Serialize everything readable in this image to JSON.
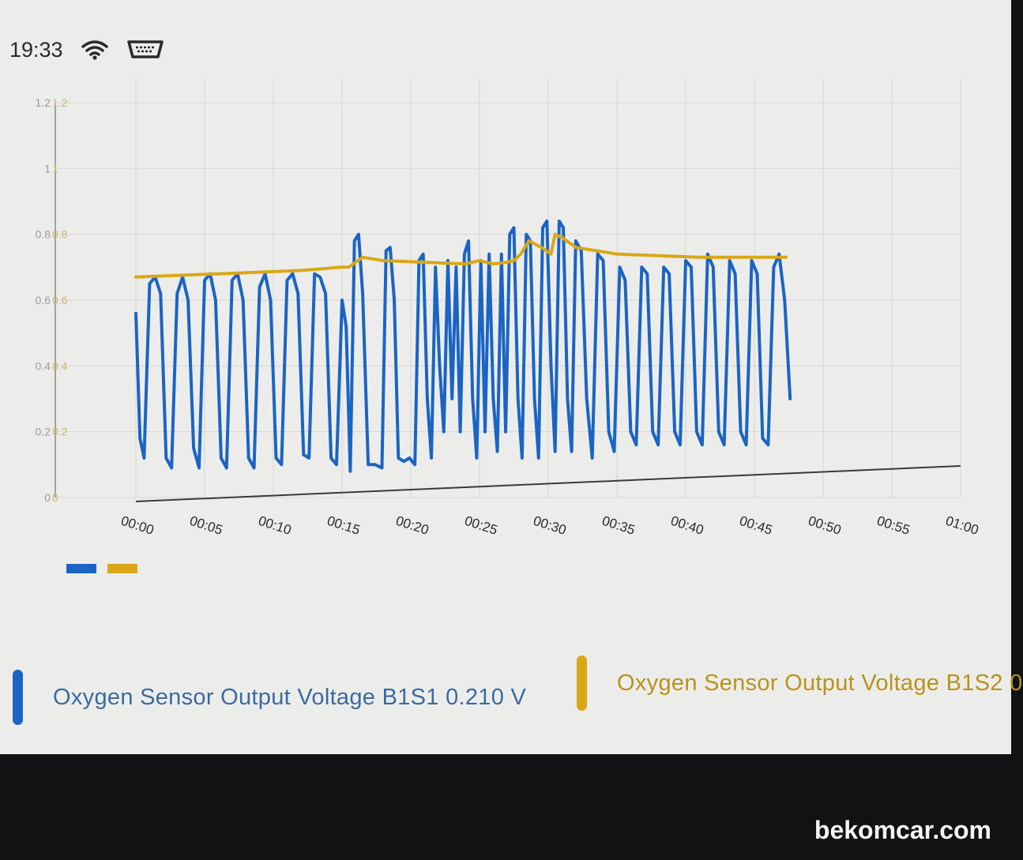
{
  "status_bar": {
    "time": "19:33",
    "icons": [
      "wifi-icon",
      "obd-adapter-icon"
    ]
  },
  "colors": {
    "series1": "#1b64c4",
    "series2": "#d9a718",
    "grid": "#d6d6d6"
  },
  "readouts": [
    {
      "label": "Oxygen Sensor Output Voltage B1S1 0.210 V",
      "color": "#1b64c4"
    },
    {
      "label": "Oxygen Sensor Output Voltage B1S2 0",
      "color": "#d9a718"
    }
  ],
  "watermark": "bekomcar.com",
  "chart_data": {
    "type": "line",
    "title": "",
    "xlabel": "",
    "ylabel": "",
    "x_ticks": [
      "00:00",
      "00:05",
      "00:10",
      "00:15",
      "00:20",
      "00:25",
      "00:30",
      "00:35",
      "00:40",
      "00:45",
      "00:50",
      "00:55",
      "01:00"
    ],
    "y_ticks": [
      "0",
      "0.2",
      "0.4",
      "0.6",
      "0.8",
      "1",
      "1.2"
    ],
    "y2_ticks": [
      "0",
      "0.2",
      "0.4",
      "0.6",
      "0.8",
      "1",
      "1.2"
    ],
    "xlim_seconds": [
      0,
      60
    ],
    "ylim": [
      0,
      1.2
    ],
    "grid": true,
    "legend": "bottom-left (color swatches only)",
    "series": [
      {
        "color": "#1b64c4",
        "points": [
          [
            0.0,
            0.56
          ],
          [
            0.3,
            0.18
          ],
          [
            0.6,
            0.12
          ],
          [
            1.0,
            0.65
          ],
          [
            1.4,
            0.67
          ],
          [
            1.8,
            0.62
          ],
          [
            2.2,
            0.12
          ],
          [
            2.6,
            0.09
          ],
          [
            3.0,
            0.62
          ],
          [
            3.4,
            0.67
          ],
          [
            3.8,
            0.6
          ],
          [
            4.2,
            0.15
          ],
          [
            4.6,
            0.09
          ],
          [
            5.0,
            0.66
          ],
          [
            5.4,
            0.68
          ],
          [
            5.8,
            0.6
          ],
          [
            6.2,
            0.12
          ],
          [
            6.6,
            0.09
          ],
          [
            7.0,
            0.66
          ],
          [
            7.4,
            0.68
          ],
          [
            7.8,
            0.6
          ],
          [
            8.2,
            0.12
          ],
          [
            8.6,
            0.09
          ],
          [
            9.0,
            0.64
          ],
          [
            9.4,
            0.68
          ],
          [
            9.8,
            0.6
          ],
          [
            10.2,
            0.12
          ],
          [
            10.6,
            0.1
          ],
          [
            11.0,
            0.66
          ],
          [
            11.4,
            0.68
          ],
          [
            11.8,
            0.62
          ],
          [
            12.2,
            0.13
          ],
          [
            12.6,
            0.12
          ],
          [
            13.0,
            0.68
          ],
          [
            13.4,
            0.67
          ],
          [
            13.8,
            0.62
          ],
          [
            14.2,
            0.12
          ],
          [
            14.6,
            0.1
          ],
          [
            15.0,
            0.6
          ],
          [
            15.3,
            0.52
          ],
          [
            15.6,
            0.08
          ],
          [
            15.9,
            0.78
          ],
          [
            16.2,
            0.8
          ],
          [
            16.5,
            0.62
          ],
          [
            16.9,
            0.1
          ],
          [
            17.4,
            0.1
          ],
          [
            17.9,
            0.09
          ],
          [
            18.2,
            0.75
          ],
          [
            18.5,
            0.76
          ],
          [
            18.8,
            0.6
          ],
          [
            19.1,
            0.12
          ],
          [
            19.5,
            0.11
          ],
          [
            19.9,
            0.12
          ],
          [
            20.3,
            0.1
          ],
          [
            20.6,
            0.72
          ],
          [
            20.9,
            0.74
          ],
          [
            21.2,
            0.3
          ],
          [
            21.5,
            0.12
          ],
          [
            21.8,
            0.7
          ],
          [
            22.1,
            0.4
          ],
          [
            22.4,
            0.2
          ],
          [
            22.7,
            0.72
          ],
          [
            23.0,
            0.3
          ],
          [
            23.3,
            0.7
          ],
          [
            23.6,
            0.2
          ],
          [
            23.9,
            0.74
          ],
          [
            24.2,
            0.78
          ],
          [
            24.5,
            0.3
          ],
          [
            24.8,
            0.12
          ],
          [
            25.1,
            0.72
          ],
          [
            25.4,
            0.2
          ],
          [
            25.7,
            0.74
          ],
          [
            26.0,
            0.3
          ],
          [
            26.3,
            0.14
          ],
          [
            26.6,
            0.74
          ],
          [
            26.9,
            0.2
          ],
          [
            27.2,
            0.8
          ],
          [
            27.5,
            0.82
          ],
          [
            27.8,
            0.3
          ],
          [
            28.1,
            0.12
          ],
          [
            28.4,
            0.8
          ],
          [
            28.7,
            0.78
          ],
          [
            29.0,
            0.3
          ],
          [
            29.3,
            0.12
          ],
          [
            29.6,
            0.82
          ],
          [
            29.9,
            0.84
          ],
          [
            30.2,
            0.4
          ],
          [
            30.5,
            0.14
          ],
          [
            30.8,
            0.84
          ],
          [
            31.1,
            0.82
          ],
          [
            31.4,
            0.3
          ],
          [
            31.7,
            0.14
          ],
          [
            32.0,
            0.78
          ],
          [
            32.4,
            0.75
          ],
          [
            32.8,
            0.3
          ],
          [
            33.2,
            0.12
          ],
          [
            33.6,
            0.74
          ],
          [
            34.0,
            0.72
          ],
          [
            34.4,
            0.2
          ],
          [
            34.8,
            0.14
          ],
          [
            35.2,
            0.7
          ],
          [
            35.6,
            0.66
          ],
          [
            36.0,
            0.2
          ],
          [
            36.4,
            0.16
          ],
          [
            36.8,
            0.7
          ],
          [
            37.2,
            0.68
          ],
          [
            37.6,
            0.2
          ],
          [
            38.0,
            0.16
          ],
          [
            38.4,
            0.7
          ],
          [
            38.8,
            0.68
          ],
          [
            39.2,
            0.2
          ],
          [
            39.6,
            0.16
          ],
          [
            40.0,
            0.72
          ],
          [
            40.4,
            0.7
          ],
          [
            40.8,
            0.2
          ],
          [
            41.2,
            0.16
          ],
          [
            41.6,
            0.74
          ],
          [
            42.0,
            0.7
          ],
          [
            42.4,
            0.2
          ],
          [
            42.8,
            0.16
          ],
          [
            43.2,
            0.72
          ],
          [
            43.6,
            0.68
          ],
          [
            44.0,
            0.2
          ],
          [
            44.4,
            0.16
          ],
          [
            44.8,
            0.72
          ],
          [
            45.2,
            0.68
          ],
          [
            45.6,
            0.18
          ],
          [
            46.0,
            0.16
          ],
          [
            46.4,
            0.7
          ],
          [
            46.8,
            0.74
          ],
          [
            47.2,
            0.6
          ],
          [
            47.6,
            0.3
          ]
        ]
      },
      {
        "color": "#d9a718",
        "points": [
          [
            0,
            0.67
          ],
          [
            3,
            0.675
          ],
          [
            6,
            0.68
          ],
          [
            9,
            0.685
          ],
          [
            12,
            0.69
          ],
          [
            15,
            0.7
          ],
          [
            15.5,
            0.7
          ],
          [
            16.5,
            0.73
          ],
          [
            18,
            0.72
          ],
          [
            21,
            0.715
          ],
          [
            24,
            0.71
          ],
          [
            25,
            0.72
          ],
          [
            26,
            0.71
          ],
          [
            27,
            0.715
          ],
          [
            27.5,
            0.72
          ],
          [
            28,
            0.74
          ],
          [
            28.6,
            0.78
          ],
          [
            29.5,
            0.76
          ],
          [
            30.2,
            0.74
          ],
          [
            30.5,
            0.8
          ],
          [
            31,
            0.79
          ],
          [
            32,
            0.76
          ],
          [
            35,
            0.74
          ],
          [
            38,
            0.735
          ],
          [
            41,
            0.73
          ],
          [
            44,
            0.73
          ],
          [
            47.3,
            0.73
          ]
        ]
      }
    ]
  }
}
